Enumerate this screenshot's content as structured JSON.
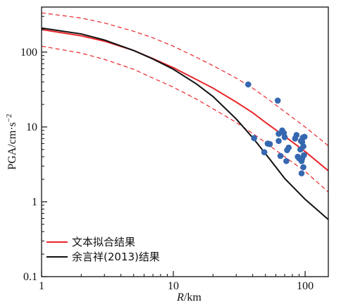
{
  "chart_data": {
    "type": "scatter",
    "xscale": "log",
    "yscale": "log",
    "xlim": [
      1,
      150
    ],
    "ylim": [
      0.1,
      400
    ],
    "x_ticks": [
      {
        "value": 1,
        "label": "1"
      },
      {
        "value": 10,
        "label": "10"
      },
      {
        "value": 100,
        "label": "100"
      }
    ],
    "y_ticks": [
      {
        "value": 0.1,
        "label": "0.1"
      },
      {
        "value": 1,
        "label": "1"
      },
      {
        "value": 10,
        "label": "10"
      },
      {
        "value": 100,
        "label": "100"
      }
    ],
    "xlabel_italic": "R",
    "xlabel_unit": "/km",
    "ylabel": "PGA/cm·s",
    "ylabel_sup": "−2",
    "grid": false,
    "legend_position": "bottom-left",
    "series": [
      {
        "name": "文本拟合结果",
        "kind": "line",
        "color": "#e8262b",
        "x": [
          1,
          2,
          3,
          5,
          7,
          10,
          15,
          20,
          30,
          40,
          50,
          70,
          100,
          150
        ],
        "y": [
          200,
          165,
          140,
          105,
          82,
          62,
          43,
          33,
          21.5,
          15.5,
          11.5,
          7.5,
          4.7,
          2.6
        ]
      },
      {
        "name": "",
        "kind": "dashed",
        "color": "#e8262b",
        "x": [
          1,
          2,
          3,
          5,
          7,
          10,
          15,
          20,
          30,
          40,
          50,
          70,
          100,
          150
        ],
        "y": [
          335,
          285,
          245,
          190,
          155,
          120,
          85,
          66,
          45,
          33,
          25,
          16,
          10,
          5.6
        ]
      },
      {
        "name": "",
        "kind": "dashed",
        "color": "#e8262b",
        "x": [
          1,
          2,
          3,
          5,
          7,
          10,
          15,
          20,
          30,
          40,
          50,
          70,
          100,
          150
        ],
        "y": [
          120,
          97,
          80,
          59,
          45,
          34,
          23.5,
          17.5,
          11.5,
          8.2,
          6.2,
          4.0,
          2.55,
          1.35
        ]
      },
      {
        "name": "余言祥(2013)结果",
        "kind": "line",
        "color": "#111111",
        "x": [
          1,
          2,
          3,
          5,
          7,
          10,
          15,
          20,
          30,
          40,
          50,
          70,
          100,
          150
        ],
        "y": [
          210,
          175,
          145,
          105,
          81,
          59,
          37.5,
          25.5,
          12.8,
          7.2,
          4.4,
          2.05,
          1.08,
          0.58
        ]
      },
      {
        "name": "",
        "kind": "points",
        "color": "#3568b0",
        "x": [
          37,
          41,
          49,
          52,
          54,
          62,
          63,
          63,
          65,
          67,
          69,
          70,
          72,
          73,
          75,
          84,
          86,
          88,
          90,
          92,
          93,
          94,
          94,
          95,
          96,
          97,
          97,
          98,
          99,
          95
        ],
        "y": [
          37,
          7.1,
          4.6,
          6.0,
          5.9,
          22.5,
          8.1,
          6.5,
          4.1,
          9.0,
          8.3,
          7.3,
          3.5,
          4.9,
          5.3,
          7.0,
          7.8,
          4.0,
          3.8,
          5.0,
          6.5,
          3.5,
          2.4,
          6.3,
          7.2,
          5.5,
          2.9,
          4.2,
          7.4,
          3.8
        ]
      }
    ]
  }
}
